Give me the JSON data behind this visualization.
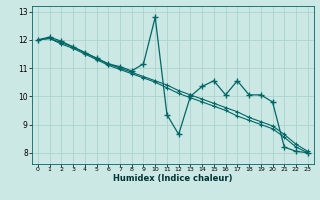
{
  "xlabel": "Humidex (Indice chaleur)",
  "background_color": "#cce8e4",
  "grid_color": "#aad4cc",
  "line_color": "#006666",
  "x_ticks": [
    0,
    1,
    2,
    3,
    4,
    5,
    6,
    7,
    8,
    9,
    10,
    11,
    12,
    13,
    14,
    15,
    16,
    17,
    18,
    19,
    20,
    21,
    22,
    23
  ],
  "y_ticks": [
    8,
    9,
    10,
    11,
    12,
    13
  ],
  "xlim": [
    -0.5,
    23.5
  ],
  "ylim": [
    7.6,
    13.2
  ],
  "series_wiggly_x": [
    0,
    1,
    2,
    3,
    4,
    5,
    6,
    7,
    8,
    9,
    10,
    11,
    12,
    13,
    14,
    15,
    16,
    17,
    18,
    19,
    20,
    21,
    22,
    23
  ],
  "series_wiggly_y": [
    12.0,
    12.1,
    11.95,
    11.75,
    11.55,
    11.35,
    11.15,
    11.05,
    10.9,
    11.15,
    12.8,
    9.35,
    8.65,
    10.0,
    10.35,
    10.55,
    10.05,
    10.55,
    10.05,
    10.05,
    9.8,
    8.2,
    8.05,
    8.0
  ],
  "series_line1_x": [
    0,
    1,
    2,
    3,
    4,
    5,
    6,
    7,
    8,
    9,
    10,
    11,
    12,
    13,
    14,
    15,
    16,
    17,
    18,
    19,
    20,
    21,
    22,
    23
  ],
  "series_line1_y": [
    12.0,
    12.05,
    11.85,
    11.7,
    11.5,
    11.3,
    11.1,
    10.95,
    10.8,
    10.65,
    10.5,
    10.3,
    10.1,
    9.95,
    9.8,
    9.65,
    9.5,
    9.3,
    9.15,
    9.0,
    8.85,
    8.55,
    8.2,
    8.0
  ],
  "series_line2_x": [
    0,
    1,
    2,
    3,
    4,
    5,
    6,
    7,
    8,
    9,
    10,
    11,
    12,
    13,
    14,
    15,
    16,
    17,
    18,
    19,
    20,
    21,
    22,
    23
  ],
  "series_line2_y": [
    12.0,
    12.05,
    11.9,
    11.75,
    11.55,
    11.35,
    11.15,
    11.0,
    10.85,
    10.7,
    10.55,
    10.4,
    10.2,
    10.05,
    9.9,
    9.75,
    9.6,
    9.45,
    9.25,
    9.1,
    8.95,
    8.65,
    8.3,
    8.05
  ]
}
